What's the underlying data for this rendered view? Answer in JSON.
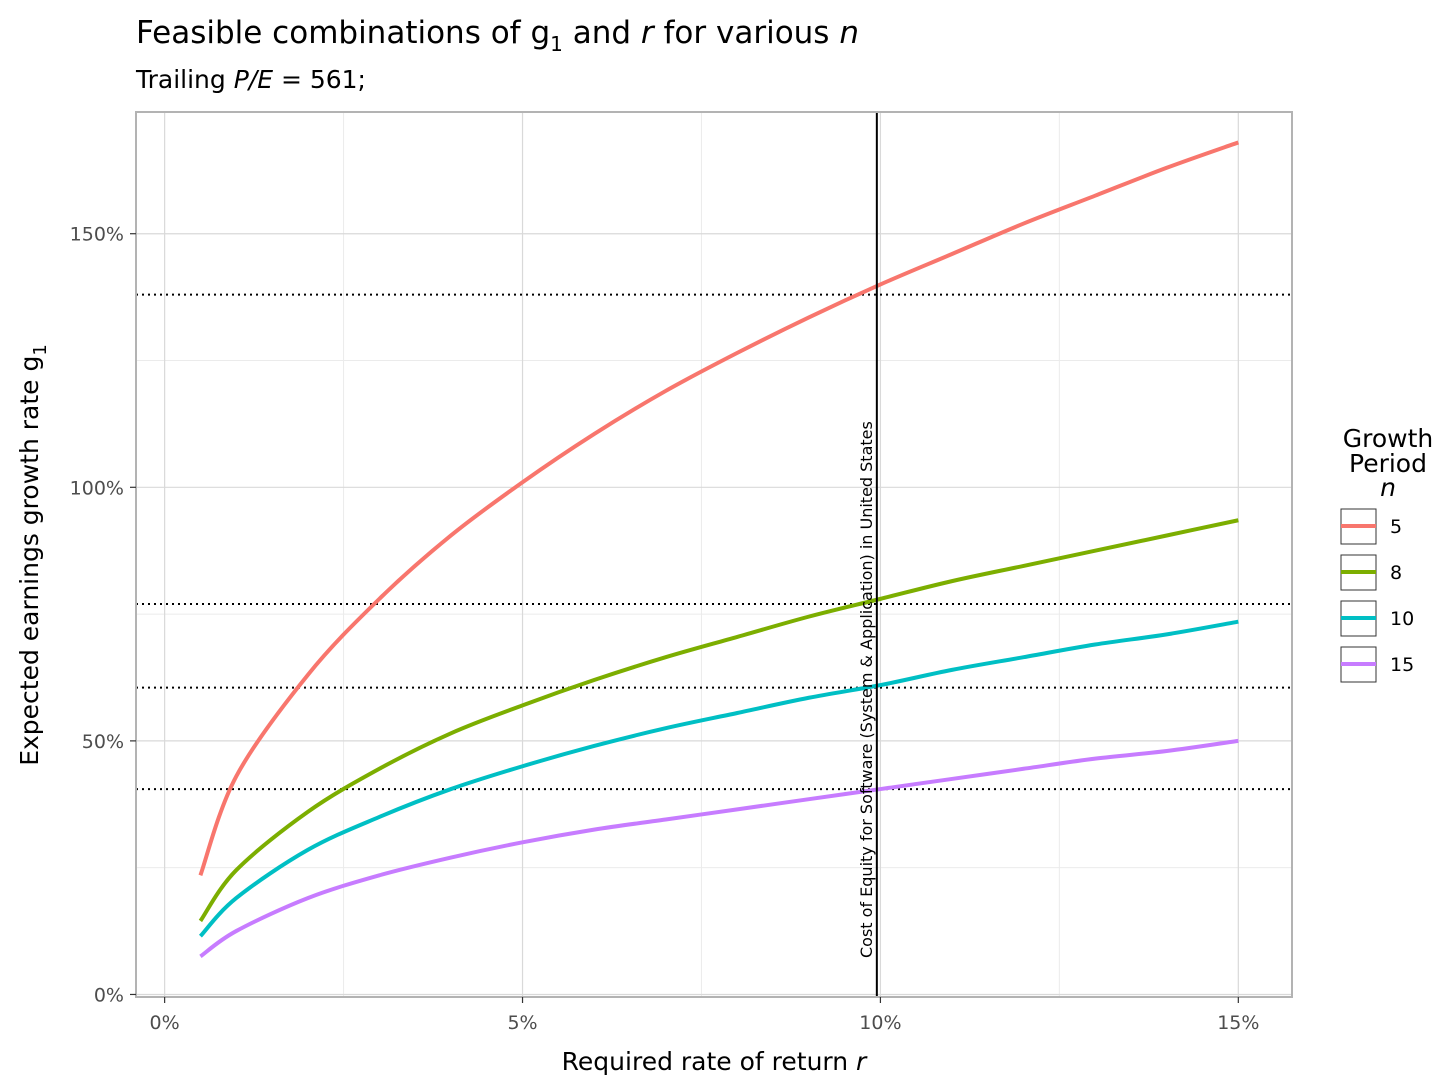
{
  "chart_data": {
    "type": "line",
    "title": "Feasible combinations of g",
    "title_sub": "1",
    "title_mid": " and ",
    "title_r": "r",
    "title_end": " for various ",
    "title_n": "n",
    "subtitle_prefix": "Trailing ",
    "subtitle_pe": "P/E",
    "subtitle_value": " = 561;",
    "xlabel": "Required rate of return ",
    "xlabel_var": "r",
    "ylabel": "Expected earnings growth rate g",
    "ylabel_sub": "1",
    "xlim": [
      -0.004,
      0.1575
    ],
    "ylim": [
      -0.005,
      1.74
    ],
    "x_ticks": [
      0,
      0.05,
      0.1,
      0.15
    ],
    "x_tick_labels": [
      "0%",
      "5%",
      "10%",
      "15%"
    ],
    "y_ticks": [
      0,
      0.5,
      1.0,
      1.5
    ],
    "y_tick_labels": [
      "0%",
      "50%",
      "100%",
      "150%"
    ],
    "x_minor_ticks": [
      0.025,
      0.075,
      0.125
    ],
    "y_minor_ticks": [
      0.25,
      0.75,
      1.25
    ],
    "grid": true,
    "legend_title_line1": "Growth",
    "legend_title_line2": "Period",
    "legend_title_line3": "n",
    "legend_position": "right",
    "series": [
      {
        "name": "5",
        "color": "#f8766d",
        "x": [
          0.005,
          0.01,
          0.02,
          0.03,
          0.04,
          0.05,
          0.06,
          0.07,
          0.08,
          0.09,
          0.1,
          0.11,
          0.12,
          0.13,
          0.14,
          0.15
        ],
        "y": [
          0.235,
          0.43,
          0.63,
          0.78,
          0.905,
          1.01,
          1.105,
          1.19,
          1.265,
          1.335,
          1.4,
          1.46,
          1.52,
          1.575,
          1.63,
          1.68
        ]
      },
      {
        "name": "8",
        "color": "#7cae00",
        "x": [
          0.005,
          0.01,
          0.02,
          0.03,
          0.04,
          0.05,
          0.06,
          0.07,
          0.08,
          0.09,
          0.1,
          0.11,
          0.12,
          0.13,
          0.14,
          0.15
        ],
        "y": [
          0.145,
          0.245,
          0.36,
          0.445,
          0.515,
          0.57,
          0.62,
          0.665,
          0.705,
          0.745,
          0.78,
          0.815,
          0.845,
          0.875,
          0.905,
          0.935
        ]
      },
      {
        "name": "10",
        "color": "#00bfc4",
        "x": [
          0.005,
          0.01,
          0.02,
          0.03,
          0.04,
          0.05,
          0.06,
          0.07,
          0.08,
          0.09,
          0.1,
          0.11,
          0.12,
          0.13,
          0.14,
          0.15
        ],
        "y": [
          0.115,
          0.19,
          0.285,
          0.35,
          0.405,
          0.45,
          0.49,
          0.525,
          0.555,
          0.585,
          0.61,
          0.64,
          0.665,
          0.69,
          0.71,
          0.735
        ]
      },
      {
        "name": "15",
        "color": "#c77cff",
        "x": [
          0.005,
          0.01,
          0.02,
          0.03,
          0.04,
          0.05,
          0.06,
          0.07,
          0.08,
          0.09,
          0.1,
          0.11,
          0.12,
          0.13,
          0.14,
          0.15
        ],
        "y": [
          0.075,
          0.125,
          0.19,
          0.235,
          0.27,
          0.3,
          0.325,
          0.345,
          0.365,
          0.385,
          0.405,
          0.425,
          0.445,
          0.465,
          0.48,
          0.5
        ]
      }
    ],
    "vline": {
      "x": 0.0995,
      "label": "Cost of Equity for Software (System & Application) in United States",
      "color": "#000000"
    },
    "hlines": [
      {
        "y": 1.38,
        "style": "dotted",
        "color": "#000000"
      },
      {
        "y": 0.77,
        "style": "dotted",
        "color": "#000000"
      },
      {
        "y": 0.605,
        "style": "dotted",
        "color": "#000000"
      },
      {
        "y": 0.405,
        "style": "dotted",
        "color": "#000000"
      }
    ]
  }
}
